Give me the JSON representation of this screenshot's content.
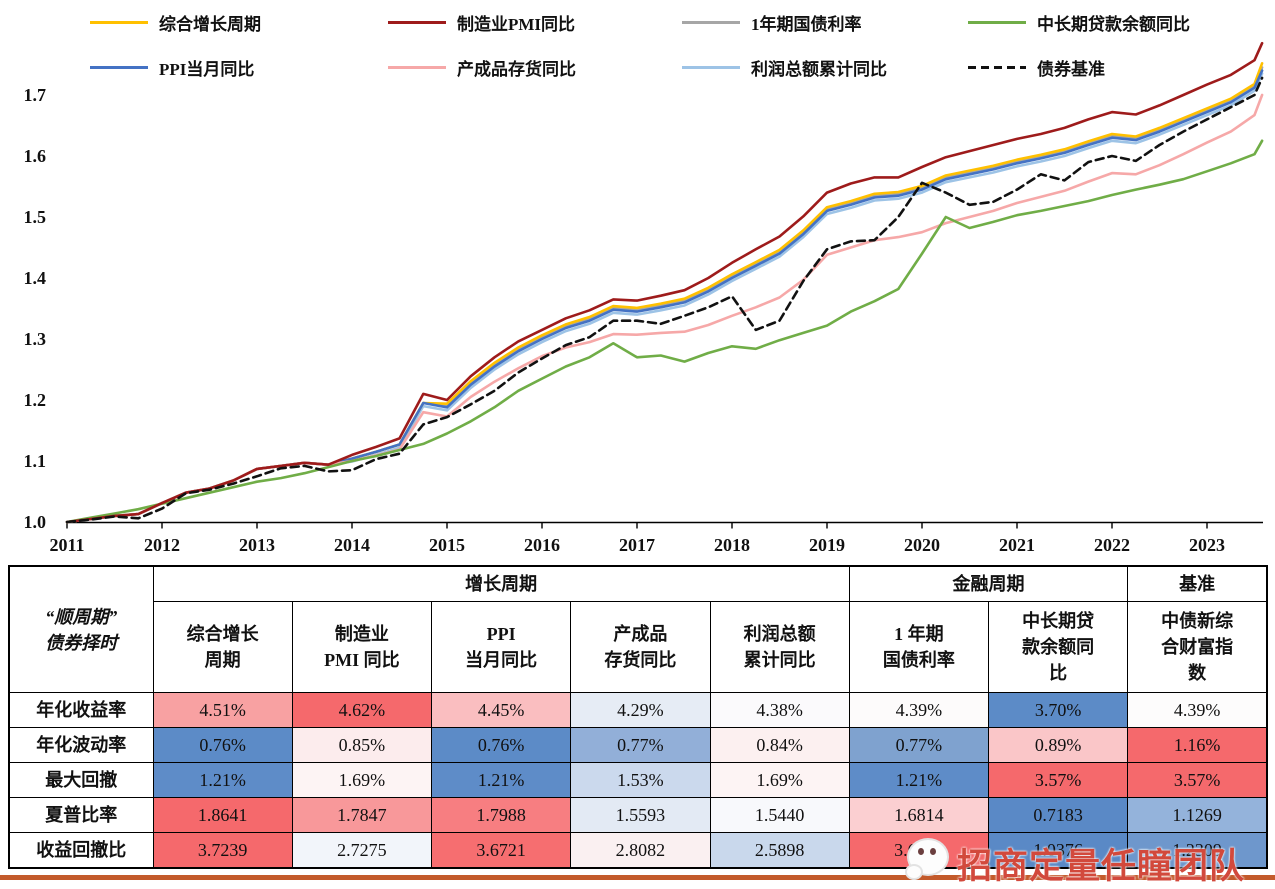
{
  "watermark": {
    "text": "招商定量任瞳团队",
    "icon": "wechat-icon",
    "stripe_color": "#C35A2B"
  },
  "chart_data": {
    "type": "line",
    "title": "",
    "xlabel": "",
    "ylabel": "",
    "ylim": [
      1.0,
      1.7
    ],
    "y_ticks": [
      "1.0",
      "1.1",
      "1.2",
      "1.3",
      "1.4",
      "1.5",
      "1.6",
      "1.7"
    ],
    "x_ticks": [
      "2011",
      "2012",
      "2013",
      "2014",
      "2015",
      "2016",
      "2017",
      "2018",
      "2019",
      "2020",
      "2021",
      "2022",
      "2023"
    ],
    "grid": false,
    "legend_position": "top",
    "x": [
      2011.0,
      2011.25,
      2011.5,
      2011.75,
      2012.0,
      2012.25,
      2012.5,
      2012.75,
      2013.0,
      2013.25,
      2013.5,
      2013.75,
      2014.0,
      2014.25,
      2014.5,
      2014.75,
      2015.0,
      2015.25,
      2015.5,
      2015.75,
      2016.0,
      2016.25,
      2016.5,
      2016.75,
      2017.0,
      2017.25,
      2017.5,
      2017.75,
      2018.0,
      2018.25,
      2018.5,
      2018.75,
      2019.0,
      2019.25,
      2019.5,
      2019.75,
      2020.0,
      2020.25,
      2020.5,
      2020.75,
      2021.0,
      2021.25,
      2021.5,
      2021.75,
      2022.0,
      2022.25,
      2022.5,
      2022.75,
      2023.0,
      2023.25,
      2023.5,
      2023.58
    ],
    "series": [
      {
        "id": "composite-growth",
        "name": "综合增长周期",
        "color": "#FFC000",
        "dashed": false,
        "values": [
          1.0,
          1.005,
          1.01,
          1.013,
          1.031,
          1.048,
          1.055,
          1.068,
          1.087,
          1.092,
          1.097,
          1.094,
          1.104,
          1.115,
          1.127,
          1.195,
          1.194,
          1.231,
          1.261,
          1.286,
          1.306,
          1.324,
          1.336,
          1.354,
          1.351,
          1.358,
          1.366,
          1.384,
          1.406,
          1.426,
          1.446,
          1.478,
          1.516,
          1.526,
          1.538,
          1.541,
          1.551,
          1.568,
          1.576,
          1.584,
          1.594,
          1.602,
          1.611,
          1.624,
          1.636,
          1.632,
          1.646,
          1.662,
          1.678,
          1.694,
          1.718,
          1.752
        ]
      },
      {
        "id": "pmi-yoy",
        "name": "制造业PMI同比",
        "color": "#9E1B1B",
        "dashed": false,
        "values": [
          1.0,
          1.005,
          1.01,
          1.013,
          1.031,
          1.048,
          1.055,
          1.068,
          1.087,
          1.092,
          1.097,
          1.094,
          1.11,
          1.123,
          1.137,
          1.21,
          1.2,
          1.239,
          1.27,
          1.296,
          1.315,
          1.334,
          1.347,
          1.365,
          1.363,
          1.371,
          1.38,
          1.4,
          1.425,
          1.447,
          1.468,
          1.501,
          1.54,
          1.555,
          1.565,
          1.565,
          1.582,
          1.598,
          1.608,
          1.618,
          1.628,
          1.636,
          1.646,
          1.66,
          1.672,
          1.668,
          1.683,
          1.7,
          1.717,
          1.733,
          1.757,
          1.785
        ]
      },
      {
        "id": "treasury-1y",
        "name": "1年期国债利率",
        "color": "#A6A6A6",
        "dashed": false,
        "values": [
          1.0,
          1.005,
          1.01,
          1.013,
          1.031,
          1.048,
          1.055,
          1.068,
          1.087,
          1.092,
          1.097,
          1.094,
          1.104,
          1.115,
          1.127,
          1.195,
          1.191,
          1.228,
          1.258,
          1.283,
          1.303,
          1.321,
          1.333,
          1.351,
          1.348,
          1.355,
          1.363,
          1.381,
          1.403,
          1.423,
          1.443,
          1.475,
          1.513,
          1.523,
          1.535,
          1.538,
          1.548,
          1.565,
          1.573,
          1.581,
          1.591,
          1.599,
          1.608,
          1.621,
          1.633,
          1.629,
          1.643,
          1.659,
          1.675,
          1.691,
          1.715,
          1.745
        ]
      },
      {
        "id": "mlt-loan-yoy",
        "name": "中长期贷款余额同比",
        "color": "#70AD47",
        "dashed": false,
        "values": [
          1.0,
          1.007,
          1.014,
          1.021,
          1.03,
          1.039,
          1.048,
          1.057,
          1.066,
          1.072,
          1.08,
          1.09,
          1.1,
          1.108,
          1.118,
          1.128,
          1.145,
          1.165,
          1.188,
          1.215,
          1.235,
          1.255,
          1.27,
          1.293,
          1.27,
          1.273,
          1.263,
          1.277,
          1.288,
          1.284,
          1.298,
          1.31,
          1.322,
          1.345,
          1.362,
          1.382,
          1.44,
          1.5,
          1.482,
          1.492,
          1.503,
          1.51,
          1.518,
          1.526,
          1.536,
          1.545,
          1.553,
          1.562,
          1.575,
          1.588,
          1.603,
          1.625
        ]
      },
      {
        "id": "ppi-yoy",
        "name": "PPI当月同比",
        "color": "#4472C4",
        "dashed": false,
        "values": [
          1.0,
          1.005,
          1.01,
          1.013,
          1.031,
          1.048,
          1.055,
          1.068,
          1.087,
          1.092,
          1.097,
          1.094,
          1.104,
          1.115,
          1.127,
          1.195,
          1.188,
          1.225,
          1.255,
          1.28,
          1.3,
          1.318,
          1.33,
          1.348,
          1.345,
          1.352,
          1.36,
          1.378,
          1.4,
          1.42,
          1.44,
          1.472,
          1.51,
          1.52,
          1.532,
          1.535,
          1.545,
          1.562,
          1.57,
          1.578,
          1.588,
          1.596,
          1.605,
          1.618,
          1.63,
          1.626,
          1.64,
          1.656,
          1.672,
          1.688,
          1.712,
          1.74
        ]
      },
      {
        "id": "inventory-yoy",
        "name": "产成品存货同比",
        "color": "#F6A8A8",
        "dashed": false,
        "values": [
          1.0,
          1.005,
          1.01,
          1.013,
          1.031,
          1.048,
          1.055,
          1.068,
          1.087,
          1.092,
          1.097,
          1.094,
          1.1,
          1.109,
          1.119,
          1.18,
          1.173,
          1.205,
          1.23,
          1.252,
          1.272,
          1.286,
          1.295,
          1.308,
          1.307,
          1.31,
          1.312,
          1.323,
          1.338,
          1.352,
          1.368,
          1.397,
          1.438,
          1.45,
          1.462,
          1.467,
          1.475,
          1.49,
          1.5,
          1.51,
          1.523,
          1.533,
          1.543,
          1.558,
          1.572,
          1.57,
          1.585,
          1.603,
          1.622,
          1.64,
          1.667,
          1.7
        ]
      },
      {
        "id": "profit-yoy",
        "name": "利润总额累计同比",
        "color": "#9DC3E6",
        "dashed": false,
        "values": [
          1.0,
          1.005,
          1.01,
          1.013,
          1.031,
          1.048,
          1.055,
          1.068,
          1.087,
          1.092,
          1.097,
          1.094,
          1.099,
          1.11,
          1.122,
          1.19,
          1.183,
          1.22,
          1.25,
          1.275,
          1.295,
          1.313,
          1.325,
          1.343,
          1.34,
          1.347,
          1.355,
          1.373,
          1.395,
          1.415,
          1.435,
          1.467,
          1.505,
          1.515,
          1.527,
          1.53,
          1.54,
          1.557,
          1.565,
          1.573,
          1.583,
          1.591,
          1.6,
          1.613,
          1.625,
          1.621,
          1.635,
          1.651,
          1.667,
          1.683,
          1.707,
          1.735
        ]
      },
      {
        "id": "bond-benchmark",
        "name": "债券基准",
        "color": "#111111",
        "dashed": true,
        "values": [
          1.0,
          1.004,
          1.009,
          1.006,
          1.022,
          1.047,
          1.053,
          1.063,
          1.075,
          1.088,
          1.092,
          1.083,
          1.085,
          1.103,
          1.112,
          1.16,
          1.172,
          1.193,
          1.215,
          1.245,
          1.268,
          1.29,
          1.303,
          1.33,
          1.33,
          1.325,
          1.338,
          1.352,
          1.37,
          1.315,
          1.33,
          1.395,
          1.447,
          1.46,
          1.462,
          1.5,
          1.556,
          1.54,
          1.52,
          1.525,
          1.545,
          1.57,
          1.56,
          1.59,
          1.6,
          1.592,
          1.618,
          1.64,
          1.66,
          1.68,
          1.7,
          1.728
        ]
      }
    ]
  },
  "table": {
    "corner_label": "“顺周期”\n债券择时",
    "groups": [
      {
        "label": "增长周期",
        "span": 5
      },
      {
        "label": "金融周期",
        "span": 2
      },
      {
        "label": "基准",
        "span": 1
      }
    ],
    "columns": [
      "综合增长\n周期",
      "制造业\nPMI 同比",
      "PPI\n当月同比",
      "产成品\n存货同比",
      "利润总额\n累计同比",
      "1 年期\n国债利率",
      "中长期贷\n款余额同\n比",
      "中债新综\n合财富指\n数"
    ],
    "rows": [
      {
        "label": "年化收益率",
        "cells": [
          {
            "v": "4.51%",
            "bg": "#F8A1A2"
          },
          {
            "v": "4.62%",
            "bg": "#F5696C"
          },
          {
            "v": "4.45%",
            "bg": "#FABEC0"
          },
          {
            "v": "4.29%",
            "bg": "#E6ECF5"
          },
          {
            "v": "4.38%",
            "bg": "#FBFAFC"
          },
          {
            "v": "4.39%",
            "bg": "#FDFBFB"
          },
          {
            "v": "3.70%",
            "bg": "#5C8BC7"
          },
          {
            "v": "4.39%",
            "bg": "#FDFCFC"
          }
        ]
      },
      {
        "label": "年化波动率",
        "cells": [
          {
            "v": "0.76%",
            "bg": "#5C8BC7"
          },
          {
            "v": "0.85%",
            "bg": "#FCECED"
          },
          {
            "v": "0.76%",
            "bg": "#5C8BC7"
          },
          {
            "v": "0.77%",
            "bg": "#92AFD8"
          },
          {
            "v": "0.84%",
            "bg": "#FCF0F0"
          },
          {
            "v": "0.77%",
            "bg": "#7FA2CF"
          },
          {
            "v": "0.89%",
            "bg": "#FAC6C8"
          },
          {
            "v": "1.16%",
            "bg": "#F5696C"
          }
        ]
      },
      {
        "label": "最大回撤",
        "cells": [
          {
            "v": "1.21%",
            "bg": "#5E8CC8"
          },
          {
            "v": "1.69%",
            "bg": "#FDF4F4"
          },
          {
            "v": "1.21%",
            "bg": "#5E8CC8"
          },
          {
            "v": "1.53%",
            "bg": "#CBD9ED"
          },
          {
            "v": "1.69%",
            "bg": "#FDF4F4"
          },
          {
            "v": "1.21%",
            "bg": "#5E8CC8"
          },
          {
            "v": "3.57%",
            "bg": "#F5696C"
          },
          {
            "v": "3.57%",
            "bg": "#F5696C"
          }
        ]
      },
      {
        "label": "夏普比率",
        "cells": [
          {
            "v": "1.8641",
            "bg": "#F5696C"
          },
          {
            "v": "1.7847",
            "bg": "#F8989A"
          },
          {
            "v": "1.7988",
            "bg": "#F77E81"
          },
          {
            "v": "1.5593",
            "bg": "#E3EAF4"
          },
          {
            "v": "1.5440",
            "bg": "#F8F9FC"
          },
          {
            "v": "1.6814",
            "bg": "#FBCFD1"
          },
          {
            "v": "0.7183",
            "bg": "#5A89C6"
          },
          {
            "v": "1.1269",
            "bg": "#94B3DB"
          }
        ]
      },
      {
        "label": "收益回撤比",
        "cells": [
          {
            "v": "3.7239",
            "bg": "#F5696C"
          },
          {
            "v": "2.7275",
            "bg": "#F2F5FA"
          },
          {
            "v": "3.6721",
            "bg": "#F66E70"
          },
          {
            "v": "2.8082",
            "bg": "#FAF0F1"
          },
          {
            "v": "2.5898",
            "bg": "#C9D8EC"
          },
          {
            "v": "3.6238",
            "bg": "#F5696C"
          },
          {
            "v": "1.0376",
            "bg": "#5A89C6"
          },
          {
            "v": "1.2309",
            "bg": "#6E97CC"
          }
        ]
      }
    ]
  }
}
